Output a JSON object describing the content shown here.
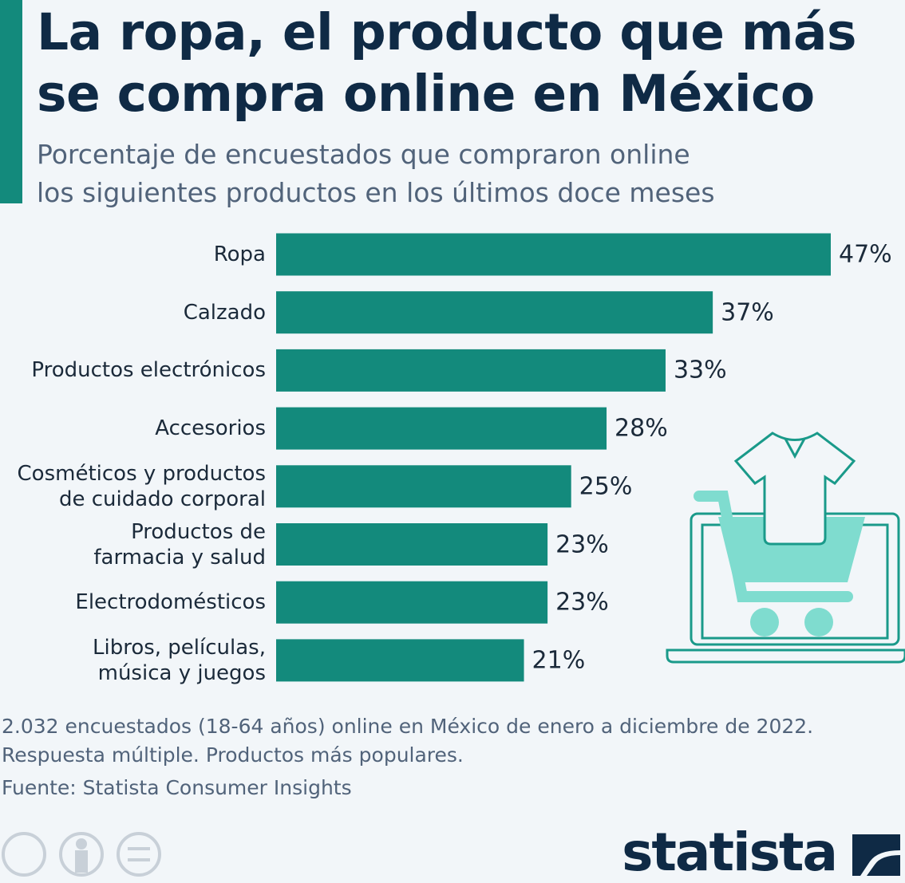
{
  "chart_data": {
    "type": "bar",
    "orientation": "horizontal",
    "title": "La ropa, el producto que más\nse compra online en México",
    "subtitle": "Porcentaje de encuestados que compraron online\nlos siguientes productos en los últimos doce meses",
    "categories": [
      "Ropa",
      "Calzado",
      "Productos electrónicos",
      "Accesorios",
      "Cosméticos y productos\nde cuidado corporal",
      "Productos de\nfarmacia y salud",
      "Electrodomésticos",
      "Libros, películas,\nmúsica y juegos"
    ],
    "values": [
      47,
      37,
      33,
      28,
      25,
      23,
      23,
      21
    ],
    "value_labels": [
      "47%",
      "37%",
      "33%",
      "28%",
      "25%",
      "23%",
      "23%",
      "21%"
    ],
    "color": "#138a7c",
    "note": "2.032 encuestados (18-64 años) online en México de enero a diciembre de 2022.\nRespuesta múltiple. Productos más populares.",
    "source": "Fuente: Statista Consumer Insights",
    "brand": "statista"
  }
}
